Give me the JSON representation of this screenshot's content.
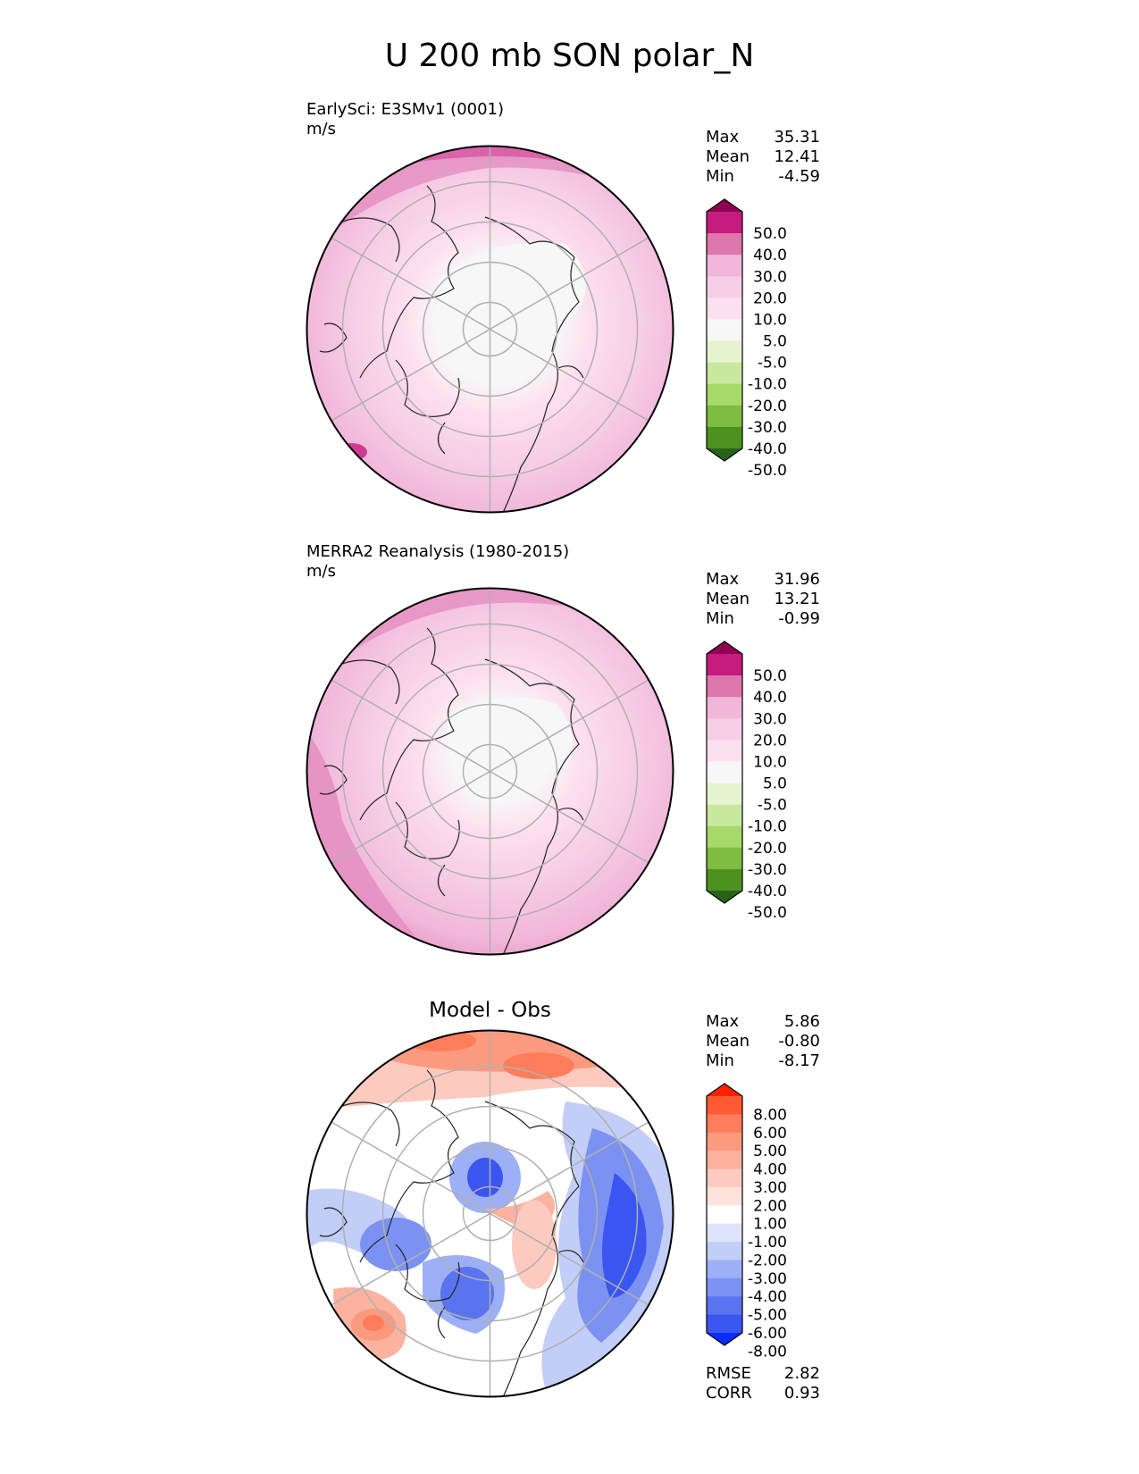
{
  "title": "U 200 mb SON polar_N",
  "panels": [
    {
      "title": "EarlySci: E3SMv1 (0001)",
      "units": "m/s",
      "stats": [
        {
          "label": "Max",
          "value": "35.31"
        },
        {
          "label": "Mean",
          "value": "12.41"
        },
        {
          "label": "Min",
          "value": "-4.59"
        }
      ]
    },
    {
      "title": "MERRA2 Reanalysis (1980-2015)",
      "units": "m/s",
      "stats": [
        {
          "label": "Max",
          "value": "31.96"
        },
        {
          "label": "Mean",
          "value": "13.21"
        },
        {
          "label": "Min",
          "value": "-0.99"
        }
      ]
    },
    {
      "title": "Model - Obs",
      "units": "",
      "stats": [
        {
          "label": "Max",
          "value": "5.86"
        },
        {
          "label": "Mean",
          "value": "-0.80"
        },
        {
          "label": "Min",
          "value": "-8.17"
        }
      ],
      "metrics": [
        {
          "label": "RMSE",
          "value": "2.82"
        },
        {
          "label": "CORR",
          "value": "0.93"
        }
      ]
    }
  ],
  "colorbars": {
    "field": {
      "ticks": [
        "50.0",
        "40.0",
        "30.0",
        "20.0",
        "10.0",
        "5.0",
        "-5.0",
        "-10.0",
        "-20.0",
        "-30.0",
        "-40.0",
        "-50.0"
      ],
      "colors": [
        "#8e0152",
        "#c51b7d",
        "#de77ae",
        "#f1b6da",
        "#f6cde5",
        "#fde0ef",
        "#f7f7f7",
        "#e6f5d0",
        "#c8e8a0",
        "#a6d96a",
        "#7fbc41",
        "#4d9221",
        "#276419"
      ]
    },
    "diff": {
      "ticks": [
        "8.00",
        "6.00",
        "5.00",
        "4.00",
        "3.00",
        "2.00",
        "1.00",
        "-1.00",
        "-2.00",
        "-3.00",
        "-4.00",
        "-5.00",
        "-6.00",
        "-8.00"
      ],
      "colors": [
        "#ff2000",
        "#ff5a33",
        "#ff7d5a",
        "#fc9a80",
        "#fbb3a0",
        "#fccabf",
        "#fde3dc",
        "#ffffff",
        "#dde4fc",
        "#c2cdf8",
        "#9eb0f5",
        "#7c92f2",
        "#5a74f0",
        "#3a55f0",
        "#0a2cf8"
      ]
    }
  },
  "chart_data": [
    {
      "type": "polar_contour_map",
      "title": "EarlySci: E3SMv1 (0001)",
      "variable": "U 200 mb",
      "season": "SON",
      "region": "polar_N",
      "units": "m/s",
      "levels": [
        -50,
        -40,
        -30,
        -20,
        -10,
        -5,
        5,
        10,
        20,
        30,
        40,
        50
      ],
      "stats": {
        "max": 35.31,
        "mean": 12.41,
        "min": -4.59
      }
    },
    {
      "type": "polar_contour_map",
      "title": "MERRA2 Reanalysis (1980-2015)",
      "variable": "U 200 mb",
      "season": "SON",
      "region": "polar_N",
      "units": "m/s",
      "levels": [
        -50,
        -40,
        -30,
        -20,
        -10,
        -5,
        5,
        10,
        20,
        30,
        40,
        50
      ],
      "stats": {
        "max": 31.96,
        "mean": 13.21,
        "min": -0.99
      }
    },
    {
      "type": "polar_contour_map",
      "title": "Model - Obs",
      "variable": "U 200 mb difference",
      "levels": [
        -8,
        -6,
        -5,
        -4,
        -3,
        -2,
        -1,
        1,
        2,
        3,
        4,
        5,
        6,
        8
      ],
      "stats": {
        "max": 5.86,
        "mean": -0.8,
        "min": -8.17,
        "rmse": 2.82,
        "corr": 0.93
      }
    }
  ]
}
